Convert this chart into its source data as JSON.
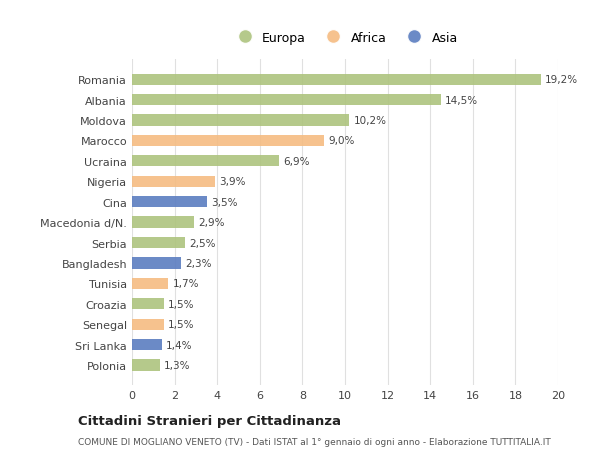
{
  "categories": [
    "Romania",
    "Albania",
    "Moldova",
    "Marocco",
    "Ucraina",
    "Nigeria",
    "Cina",
    "Macedonia d/N.",
    "Serbia",
    "Bangladesh",
    "Tunisia",
    "Croazia",
    "Senegal",
    "Sri Lanka",
    "Polonia"
  ],
  "values": [
    19.2,
    14.5,
    10.2,
    9.0,
    6.9,
    3.9,
    3.5,
    2.9,
    2.5,
    2.3,
    1.7,
    1.5,
    1.5,
    1.4,
    1.3
  ],
  "labels": [
    "19,2%",
    "14,5%",
    "10,2%",
    "9,0%",
    "6,9%",
    "3,9%",
    "3,5%",
    "2,9%",
    "2,5%",
    "2,3%",
    "1,7%",
    "1,5%",
    "1,5%",
    "1,4%",
    "1,3%"
  ],
  "continents": [
    "Europa",
    "Europa",
    "Europa",
    "Africa",
    "Europa",
    "Africa",
    "Asia",
    "Europa",
    "Europa",
    "Asia",
    "Africa",
    "Europa",
    "Africa",
    "Asia",
    "Europa"
  ],
  "continent_colors": {
    "Europa": "#adc47e",
    "Africa": "#f5bc82",
    "Asia": "#5b7dc0"
  },
  "legend_entries": [
    "Europa",
    "Africa",
    "Asia"
  ],
  "bg_color": "#ffffff",
  "plot_bg_color": "#ffffff",
  "grid_color": "#e0e0e0",
  "title": "Cittadini Stranieri per Cittadinanza",
  "subtitle": "COMUNE DI MOGLIANO VENETO (TV) - Dati ISTAT al 1° gennaio di ogni anno - Elaborazione TUTTITALIA.IT",
  "xlim": [
    0,
    20
  ],
  "xticks": [
    0,
    2,
    4,
    6,
    8,
    10,
    12,
    14,
    16,
    18,
    20
  ]
}
